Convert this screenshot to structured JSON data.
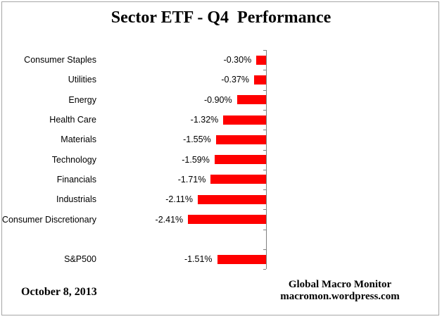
{
  "title": "Sector ETF - Q4  Performance",
  "footer": {
    "date": "October 8, 2013",
    "brand_line1": "Global Macro Monitor",
    "brand_line2": "macromon.wordpress.com"
  },
  "chart_data": {
    "type": "bar",
    "orientation": "horizontal",
    "title": "Sector ETF - Q4  Performance",
    "categories": [
      "Consumer Staples",
      "Utilities",
      "Energy",
      "Health Care",
      "Materials",
      "Technology",
      "Financials",
      "Industrials",
      "Consumer Discretionary",
      "",
      "S&P500"
    ],
    "values": [
      -0.3,
      -0.37,
      -0.9,
      -1.32,
      -1.55,
      -1.59,
      -1.71,
      -2.11,
      -2.41,
      null,
      -1.51
    ],
    "value_labels": [
      "-0.30%",
      "-0.37%",
      "-0.90%",
      "-1.32%",
      "-1.55%",
      "-1.59%",
      "-1.71%",
      "-2.11%",
      "-2.41%",
      "",
      "-1.51%"
    ],
    "bar_color": "#ff0000",
    "axis_color": "#808080",
    "xlim": [
      -2.75,
      0
    ],
    "gridlines": false,
    "legend": false
  }
}
